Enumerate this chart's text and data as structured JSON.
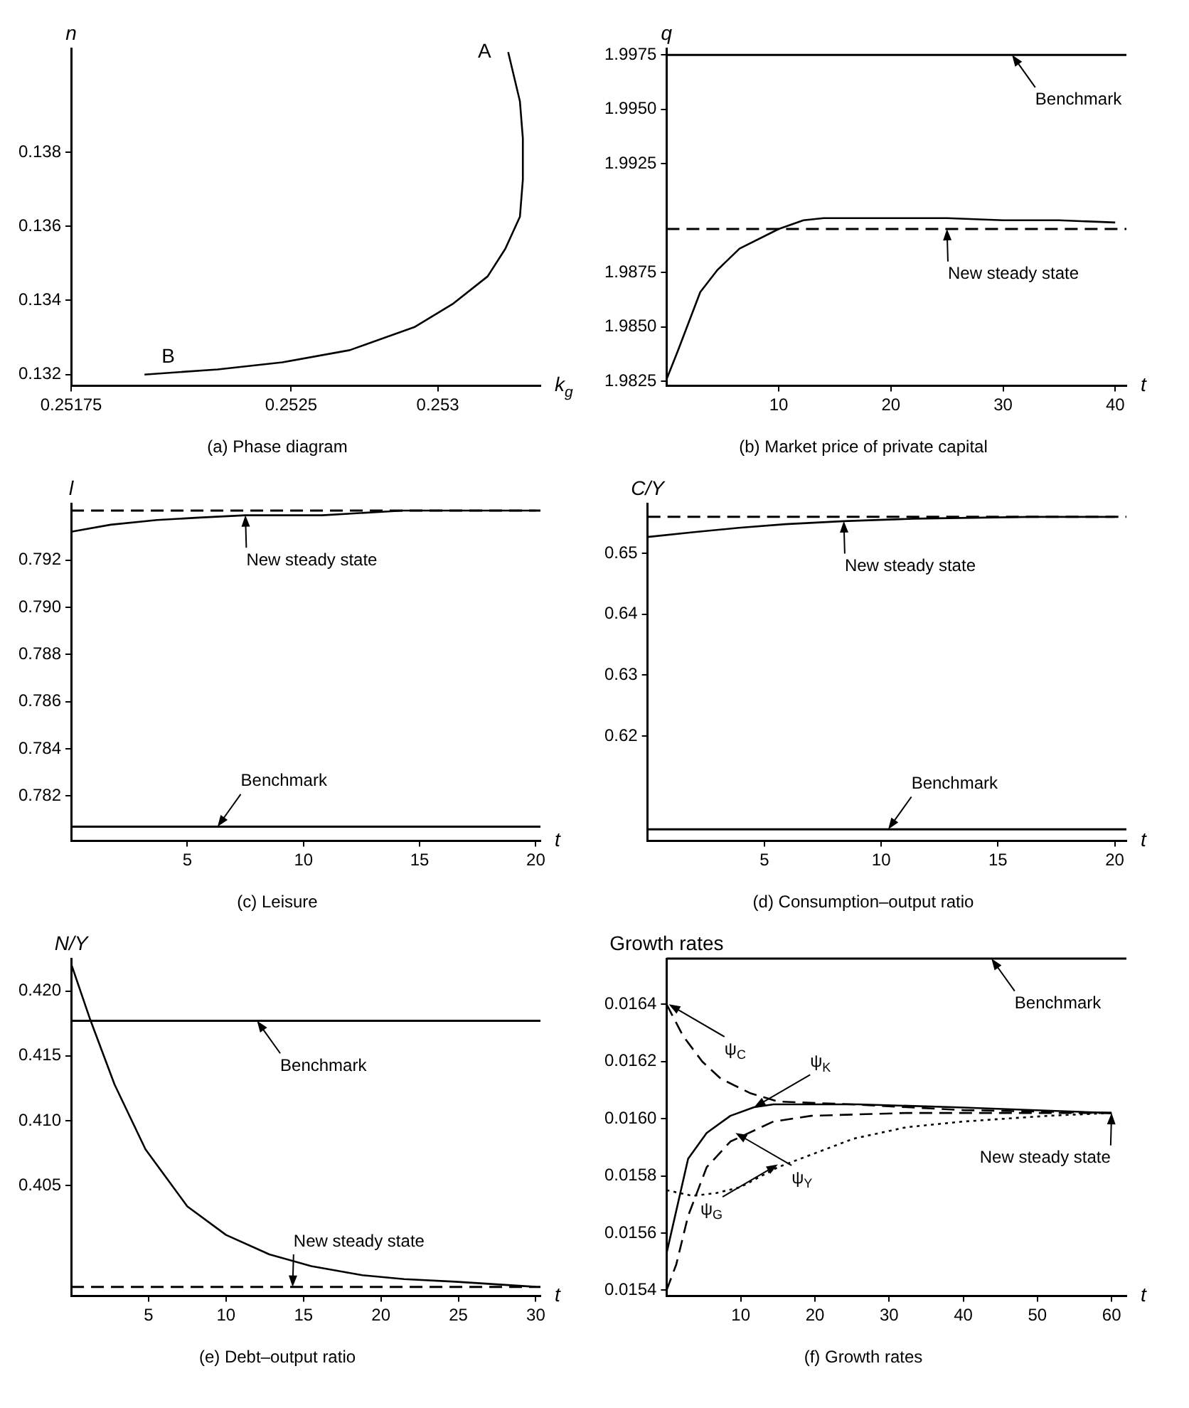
{
  "chart_data": [
    {
      "type": "line",
      "title": "(a) Phase diagram",
      "xlabel": "k$_{g}$",
      "ylabel": "n",
      "xlim": [
        0.25175,
        0.25335
      ],
      "xticks": [
        0.25175,
        0.2525,
        0.253
      ],
      "ylim": [
        0.1317,
        0.1408
      ],
      "yticks": [
        0.132,
        0.134,
        0.136,
        0.138
      ],
      "x": [
        0.25324,
        0.25328,
        0.25329,
        0.25329,
        0.25328,
        0.25323,
        0.25317,
        0.25305,
        0.25292,
        0.2527,
        0.25247,
        0.25225,
        0.252
      ],
      "series": [
        {
          "color": "#000000",
          "values": [
            0.1407,
            0.13937,
            0.13837,
            0.13726,
            0.13626,
            0.13539,
            0.13465,
            0.1339,
            0.13328,
            0.13266,
            0.13233,
            0.13214,
            0.132
          ]
        }
      ],
      "annotations": [
        {
          "text": "A",
          "x": 0.25324,
          "y": 0.1407
        },
        {
          "text": "B",
          "x": 0.252,
          "y": 0.132
        }
      ]
    },
    {
      "type": "line",
      "title": "(b) Market price of private capital",
      "xlabel": "t",
      "ylabel": "q",
      "xlim": [
        0,
        41
      ],
      "xticks": [
        10,
        20,
        30,
        40
      ],
      "ylim": [
        1.9823,
        1.9978
      ],
      "yticks": [
        1.9825,
        {
          "value": 1.985,
          "label": "1.9850"
        },
        1.9875,
        1.9925,
        {
          "value": 1.995,
          "label": "1.9950"
        },
        1.9975
      ],
      "x": [
        0,
        1,
        3,
        4.5,
        6.5,
        10,
        12.2,
        14,
        20,
        25,
        30,
        35,
        40
      ],
      "series": [
        {
          "color": "#000000",
          "values": [
            1.9826,
            1.9839,
            1.9866,
            1.9876,
            1.9886,
            1.9895,
            1.9899,
            1.99,
            1.99,
            1.99,
            1.9899,
            1.9899,
            1.9898
          ]
        }
      ],
      "ref_lines": [
        {
          "axis": "y",
          "value": 1.9975,
          "line_style": "solid",
          "color": "#000000"
        },
        {
          "axis": "y",
          "value": 1.9895,
          "line_style": "dashed",
          "color": "#000000"
        }
      ],
      "annotations": [
        {
          "text": "Benchmark",
          "x": 30.8,
          "y": 1.9975
        },
        {
          "text": "New steady state",
          "x": 25,
          "y": 1.9895
        }
      ]
    },
    {
      "type": "line",
      "title": "(c) Leisure",
      "xlabel": "t",
      "ylabel": "l",
      "xlim": [
        0,
        20.2
      ],
      "xticks": [
        5,
        10,
        15,
        20
      ],
      "ylim": [
        0.7801,
        0.7944
      ],
      "yticks": [
        0.782,
        0.784,
        0.786,
        0.788,
        {
          "value": 0.79,
          "label": "0.790"
        },
        0.792
      ],
      "x": [
        0,
        1.7,
        3.7,
        5.5,
        7.5,
        10.8,
        14.3,
        16.5,
        20
      ],
      "series": [
        {
          "color": "#000000",
          "values": [
            0.7932,
            0.7935,
            0.7937,
            0.7938,
            0.7939,
            0.7939,
            0.7941,
            0.7941,
            0.7941
          ]
        }
      ],
      "ref_lines": [
        {
          "axis": "y",
          "value": 0.7807,
          "line_style": "solid",
          "color": "#000000"
        },
        {
          "axis": "y",
          "value": 0.7941,
          "line_style": "dashed",
          "color": "#000000"
        }
      ],
      "annotations": [
        {
          "text": "New steady state",
          "x": 7.5,
          "y": 0.7939
        },
        {
          "text": "Benchmark",
          "x": 6.3,
          "y": 0.7807
        }
      ]
    },
    {
      "type": "line",
      "title": "(d) Consumption–output ratio",
      "xlabel": "t",
      "ylabel": "C/Y",
      "xlim": [
        0,
        20.5
      ],
      "xticks": [
        5,
        10,
        15,
        20
      ],
      "ylim": [
        0.6028,
        0.6582
      ],
      "yticks": [
        0.62,
        0.63,
        0.64,
        0.65
      ],
      "x": [
        0,
        2,
        3.9,
        5.9,
        8.4,
        11.4,
        16.4,
        20
      ],
      "series": [
        {
          "color": "#000000",
          "values": [
            0.6527,
            0.6535,
            0.6542,
            0.6548,
            0.6553,
            0.6557,
            0.656,
            0.656
          ]
        }
      ],
      "ref_lines": [
        {
          "axis": "y",
          "value": 0.6047,
          "line_style": "solid",
          "color": "#000000"
        },
        {
          "axis": "y",
          "value": 0.656,
          "line_style": "dashed",
          "color": "#000000"
        }
      ],
      "annotations": [
        {
          "text": "New steady state",
          "x": 8.4,
          "y": 0.6553
        },
        {
          "text": "Benchmark",
          "x": 10.3,
          "y": 0.6047
        }
      ]
    },
    {
      "type": "line",
      "title": "(e) Debt–output ratio",
      "xlabel": "t",
      "ylabel": "N/Y",
      "xlim": [
        0,
        30.3
      ],
      "xticks": [
        5,
        10,
        15,
        20,
        25,
        30
      ],
      "ylim": [
        0.3965,
        0.4225
      ],
      "yticks": [
        0.405,
        {
          "value": 0.41,
          "label": "0.410"
        },
        0.415,
        {
          "value": 0.42,
          "label": "0.420"
        }
      ],
      "x": [
        0,
        1.2,
        2.8,
        4.8,
        7.5,
        10,
        12.8,
        15.5,
        18.8,
        21.5,
        24.8,
        30
      ],
      "series": [
        {
          "color": "#000000",
          "values": [
            0.4221,
            0.4179,
            0.4128,
            0.4078,
            0.4034,
            0.4012,
            0.3997,
            0.3988,
            0.3981,
            0.3978,
            0.3976,
            0.3972
          ]
        }
      ],
      "ref_lines": [
        {
          "axis": "y",
          "value": 0.4177,
          "line_style": "solid",
          "color": "#000000"
        },
        {
          "axis": "y",
          "value": 0.3972,
          "line_style": "dashed",
          "color": "#000000"
        }
      ],
      "annotations": [
        {
          "text": "Benchmark",
          "x": 12,
          "y": 0.4177
        },
        {
          "text": "New steady state",
          "x": 14.3,
          "y": 0.3972
        }
      ]
    },
    {
      "type": "line",
      "title": "(f) Growth rates",
      "xlabel": "t",
      "ylabel": "Growth rates",
      "xlim": [
        0,
        62
      ],
      "xticks": [
        10,
        20,
        30,
        40,
        50,
        60
      ],
      "ylim": [
        0.01538,
        0.01656
      ],
      "yticks": [
        0.0154,
        0.0156,
        0.0158,
        {
          "value": 0.016,
          "label": "0.0160"
        },
        0.0162,
        0.0164
      ],
      "series": [
        {
          "color": "#000000",
          "line_style": "dashed",
          "x": [
            0,
            2.2,
            4.8,
            7.3,
            11.2,
            15,
            25,
            40,
            60
          ],
          "values": [
            0.0164,
            0.01629,
            0.0162,
            0.01614,
            0.01609,
            0.01606,
            0.01605,
            0.01603,
            0.01602
          ]
        },
        {
          "color": "#000000",
          "line_style": "solid",
          "x": [
            0,
            2.9,
            5.4,
            8.6,
            11.8,
            14.4,
            25.9,
            38.7,
            60
          ],
          "values": [
            0.01553,
            0.01586,
            0.01595,
            0.01601,
            0.01604,
            0.01605,
            0.01605,
            0.01604,
            0.01602
          ]
        },
        {
          "color": "#000000",
          "line_style": "dashed",
          "x": [
            0,
            1.3,
            2.9,
            5.4,
            8.6,
            14.4,
            19.5,
            32.3,
            60
          ],
          "values": [
            0.0154,
            0.01549,
            0.01566,
            0.01583,
            0.01592,
            0.01599,
            0.01601,
            0.01602,
            0.01602
          ]
        },
        {
          "color": "#000000",
          "line_style": "dotted",
          "x": [
            0,
            3.5,
            6.7,
            9.9,
            15,
            20.1,
            25.2,
            32.3,
            40,
            51.4,
            60
          ],
          "values": [
            0.01575,
            0.01573,
            0.01574,
            0.01576,
            0.01583,
            0.01588,
            0.01593,
            0.01597,
            0.01599,
            0.01601,
            0.01602
          ]
        }
      ],
      "ref_lines": [
        {
          "axis": "y",
          "value": 0.01656,
          "line_style": "solid",
          "color": "#000000"
        }
      ],
      "annotations": [
        {
          "text": "ψ$_{C}$",
          "x": 0.3,
          "y": 0.0164
        },
        {
          "text": "ψ$_{Y}$",
          "x": 9.3,
          "y": 0.01595
        },
        {
          "text": "ψ$_{K}$",
          "x": 11.8,
          "y": 0.01604
        },
        {
          "text": "ψ$_{G}$",
          "x": 15,
          "y": 0.01584
        },
        {
          "text": "Benchmark",
          "x": 43.8,
          "y": 0.01656
        },
        {
          "text": "New steady state",
          "x": 60,
          "y": 0.01602
        }
      ]
    }
  ]
}
